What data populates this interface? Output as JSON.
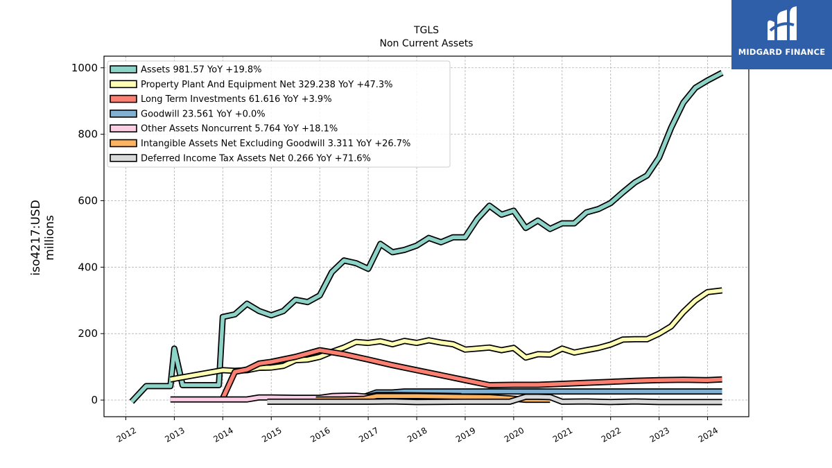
{
  "logo": {
    "text": "MIDGARD FINANCE"
  },
  "chart_data": {
    "type": "line",
    "title": "TGLS",
    "subtitle": "Non Current  Assets",
    "ylabel_line1": "iso4217:USD",
    "ylabel_line2": "millions",
    "xlim": [
      2011.55,
      2024.85
    ],
    "ylim": [
      -50,
      1035
    ],
    "grid": true,
    "legend_position": "upper-left",
    "x_ticks": [
      2012,
      2013,
      2014,
      2015,
      2016,
      2017,
      2018,
      2019,
      2020,
      2021,
      2022,
      2023,
      2024
    ],
    "y_ticks": [
      0,
      200,
      400,
      600,
      800,
      1000
    ],
    "series": [
      {
        "name": "Assets",
        "legend": "Assets  981.57 YoY +19.8%",
        "color": "#8dd3c7",
        "points": [
          [
            2012.12,
            -5
          ],
          [
            2012.42,
            42
          ],
          [
            2012.92,
            42
          ],
          [
            2013.0,
            155
          ],
          [
            2013.17,
            45
          ],
          [
            2013.92,
            45
          ],
          [
            2014.0,
            250
          ],
          [
            2014.25,
            258
          ],
          [
            2014.5,
            290
          ],
          [
            2014.75,
            268
          ],
          [
            2015.0,
            255
          ],
          [
            2015.25,
            268
          ],
          [
            2015.5,
            302
          ],
          [
            2015.75,
            295
          ],
          [
            2016.0,
            315
          ],
          [
            2016.25,
            385
          ],
          [
            2016.5,
            420
          ],
          [
            2016.75,
            412
          ],
          [
            2017.0,
            395
          ],
          [
            2017.25,
            470
          ],
          [
            2017.5,
            445
          ],
          [
            2017.75,
            452
          ],
          [
            2018.0,
            465
          ],
          [
            2018.25,
            488
          ],
          [
            2018.5,
            475
          ],
          [
            2018.75,
            490
          ],
          [
            2019.0,
            490
          ],
          [
            2019.25,
            545
          ],
          [
            2019.5,
            585
          ],
          [
            2019.75,
            558
          ],
          [
            2020.0,
            570
          ],
          [
            2020.25,
            518
          ],
          [
            2020.5,
            540
          ],
          [
            2020.75,
            515
          ],
          [
            2021.0,
            532
          ],
          [
            2021.25,
            532
          ],
          [
            2021.5,
            565
          ],
          [
            2021.75,
            575
          ],
          [
            2022.0,
            593
          ],
          [
            2022.25,
            625
          ],
          [
            2022.5,
            655
          ],
          [
            2022.75,
            676
          ],
          [
            2023.0,
            730
          ],
          [
            2023.25,
            820
          ],
          [
            2023.5,
            895
          ],
          [
            2023.75,
            940
          ],
          [
            2024.0,
            962
          ],
          [
            2024.3,
            985
          ]
        ]
      },
      {
        "name": "Property Plant And Equipment Net",
        "legend": "Property Plant And Equipment Net  329.238 YoY +47.3%",
        "color": "#ffffb3",
        "points": [
          [
            2012.92,
            62
          ],
          [
            2014.0,
            90
          ],
          [
            2014.25,
            88
          ],
          [
            2014.5,
            90
          ],
          [
            2014.75,
            97
          ],
          [
            2015.0,
            98
          ],
          [
            2015.25,
            103
          ],
          [
            2015.5,
            120
          ],
          [
            2015.75,
            122
          ],
          [
            2016.0,
            130
          ],
          [
            2016.25,
            145
          ],
          [
            2016.5,
            158
          ],
          [
            2016.75,
            175
          ],
          [
            2017.0,
            172
          ],
          [
            2017.25,
            177
          ],
          [
            2017.5,
            168
          ],
          [
            2017.75,
            178
          ],
          [
            2018.0,
            172
          ],
          [
            2018.25,
            180
          ],
          [
            2018.5,
            173
          ],
          [
            2018.75,
            168
          ],
          [
            2019.0,
            152
          ],
          [
            2019.25,
            155
          ],
          [
            2019.5,
            158
          ],
          [
            2019.75,
            150
          ],
          [
            2020.0,
            157
          ],
          [
            2020.25,
            128
          ],
          [
            2020.5,
            138
          ],
          [
            2020.75,
            137
          ],
          [
            2021.0,
            155
          ],
          [
            2021.25,
            143
          ],
          [
            2021.5,
            150
          ],
          [
            2021.75,
            157
          ],
          [
            2022.0,
            167
          ],
          [
            2022.25,
            182
          ],
          [
            2022.5,
            183
          ],
          [
            2022.75,
            183
          ],
          [
            2023.0,
            200
          ],
          [
            2023.25,
            222
          ],
          [
            2023.5,
            265
          ],
          [
            2023.75,
            300
          ],
          [
            2024.0,
            325
          ],
          [
            2024.3,
            330
          ]
        ]
      },
      {
        "name": "Long Term Investments",
        "legend": "Long Term Investments  61.616 YoY +3.9%",
        "color": "#fb8072",
        "points": [
          [
            2014.0,
            5
          ],
          [
            2014.25,
            85
          ],
          [
            2014.5,
            92
          ],
          [
            2014.75,
            110
          ],
          [
            2015.0,
            115
          ],
          [
            2015.5,
            130
          ],
          [
            2016.0,
            150
          ],
          [
            2016.5,
            138
          ],
          [
            2017.0,
            122
          ],
          [
            2017.5,
            105
          ],
          [
            2018.0,
            90
          ],
          [
            2018.5,
            75
          ],
          [
            2019.0,
            60
          ],
          [
            2019.5,
            45
          ],
          [
            2020.0,
            46
          ],
          [
            2020.5,
            46
          ],
          [
            2021.0,
            49
          ],
          [
            2021.5,
            52
          ],
          [
            2022.0,
            55
          ],
          [
            2022.5,
            58
          ],
          [
            2023.0,
            60
          ],
          [
            2023.5,
            61
          ],
          [
            2024.0,
            60
          ],
          [
            2024.3,
            62
          ]
        ]
      },
      {
        "name": "Goodwill",
        "legend": "Goodwill  23.561 YoY +0.0%",
        "color": "#80b1d3",
        "points": [
          [
            2016.92,
            10
          ],
          [
            2017.17,
            23
          ],
          [
            2017.5,
            23
          ],
          [
            2017.75,
            26
          ],
          [
            2018.0,
            26
          ],
          [
            2024.3,
            26
          ]
        ]
      },
      {
        "name": "Other Assets Noncurrent",
        "legend": "Other Assets Noncurrent  5.764 YoY +18.1%",
        "color": "#fccde5",
        "points": [
          [
            2012.92,
            2
          ],
          [
            2013.5,
            2
          ],
          [
            2014.0,
            2
          ],
          [
            2014.5,
            2
          ],
          [
            2014.75,
            8
          ],
          [
            2015.0,
            8
          ],
          [
            2015.5,
            7
          ],
          [
            2016.0,
            7
          ],
          [
            2016.25,
            12
          ],
          [
            2016.5,
            13
          ],
          [
            2016.75,
            13
          ],
          [
            2017.0,
            10
          ],
          [
            2017.17,
            15
          ],
          [
            2017.5,
            15
          ],
          [
            2018.0,
            14
          ],
          [
            2018.5,
            13
          ],
          [
            2018.92,
            12
          ]
        ]
      },
      {
        "name": "Intangible Assets Net Excluding Goodwill",
        "legend": "Intangible Assets Net Excluding Goodwill  3.311 YoY +26.7%",
        "color": "#fdb462",
        "points": [
          [
            2015.92,
            2
          ],
          [
            2016.5,
            2
          ],
          [
            2016.92,
            4
          ],
          [
            2017.17,
            12
          ],
          [
            2017.5,
            12
          ],
          [
            2018.0,
            12
          ],
          [
            2018.5,
            11
          ],
          [
            2018.92,
            10
          ],
          [
            2019.5,
            9
          ],
          [
            2019.92,
            5
          ],
          [
            2020.25,
            1
          ],
          [
            2020.75,
            1
          ]
        ]
      },
      {
        "name": "Deferred Income Tax Assets Net",
        "legend": "Deferred Income Tax Assets Net  0.266 YoY +71.6%",
        "color": "#d9d9d9",
        "points": [
          [
            2014.92,
            -5
          ],
          [
            2015.5,
            -5
          ],
          [
            2016.0,
            -5
          ],
          [
            2016.5,
            -5
          ],
          [
            2017.0,
            -5
          ],
          [
            2017.5,
            -4
          ],
          [
            2018.0,
            -6
          ],
          [
            2018.92,
            -5
          ],
          [
            2019.5,
            -5
          ],
          [
            2019.92,
            -5
          ],
          [
            2020.25,
            10
          ],
          [
            2020.5,
            10
          ],
          [
            2020.75,
            9
          ],
          [
            2021.0,
            -5
          ],
          [
            2021.5,
            -4
          ],
          [
            2022.0,
            -6
          ],
          [
            2022.5,
            -4
          ],
          [
            2023.0,
            -6
          ],
          [
            2023.5,
            -6
          ],
          [
            2024.0,
            -6
          ],
          [
            2024.3,
            -6
          ]
        ]
      }
    ]
  }
}
